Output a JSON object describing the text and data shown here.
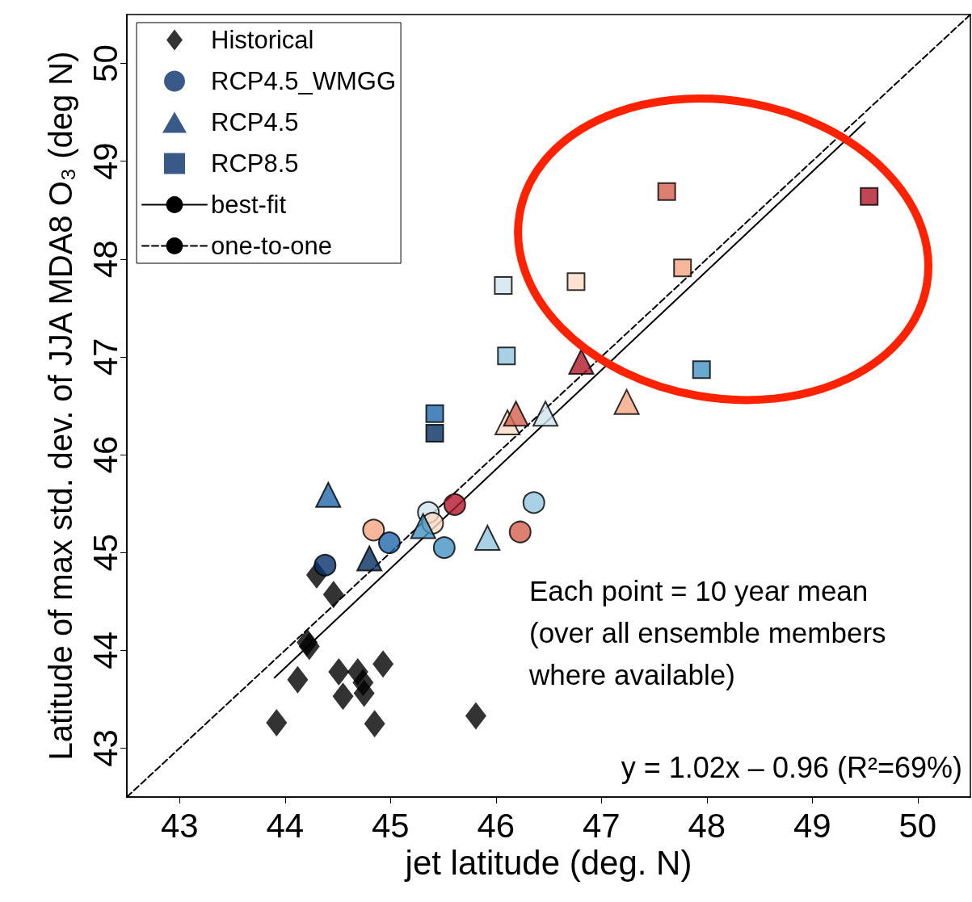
{
  "chart_data": {
    "type": "scatter",
    "xlabel": "jet latitude (deg. N)",
    "ylabel": "Latitude of max std. dev. of JJA MDA8 O₃ (deg N)",
    "xlim": [
      42.5,
      50.5
    ],
    "xticks": [
      43,
      44,
      45,
      46,
      47,
      48,
      49,
      50
    ],
    "ylim": [
      42.5,
      50.5
    ],
    "yticks": [
      43,
      44,
      45,
      46,
      47,
      48,
      49,
      50
    ],
    "grid": false,
    "legend": "top left",
    "series": [
      {
        "name": "Historical",
        "marker": "diamond",
        "color": "#000000",
        "x": [
          43.92,
          44.12,
          44.21,
          44.23,
          44.3,
          44.46,
          44.51,
          44.55,
          44.69,
          44.74,
          44.75,
          44.93,
          44.85,
          45.81
        ],
        "values": [
          43.26,
          43.7,
          44.08,
          44.04,
          44.77,
          44.57,
          43.78,
          43.53,
          43.78,
          43.67,
          43.56,
          43.86,
          43.25,
          43.33
        ]
      },
      {
        "name": "RCP4.5_WMGG",
        "marker": "circle",
        "color": "#08306b",
        "x": [
          44.38,
          44.84,
          44.99,
          45.36,
          45.4,
          45.61,
          45.51,
          46.23,
          46.36
        ],
        "values": [
          44.87,
          45.23,
          45.1,
          45.41,
          45.3,
          45.49,
          45.05,
          45.21,
          45.51
        ],
        "colors": [
          "#08306b",
          "#f4a582",
          "#2166ac",
          "#d1e5f0",
          "#fddbc7",
          "#b2182b",
          "#4393c3",
          "#d6604d",
          "#92c5de"
        ]
      },
      {
        "name": "RCP4.5",
        "marker": "triangle",
        "color": "#08306b",
        "x": [
          44.41,
          44.8,
          45.31,
          45.92,
          46.11,
          46.19,
          46.47,
          46.81,
          47.24
        ],
        "values": [
          45.59,
          44.94,
          45.27,
          45.15,
          46.33,
          46.42,
          46.42,
          46.95,
          46.54
        ],
        "colors": [
          "#2166ac",
          "#053061",
          "#4393c3",
          "#92c5de",
          "#fddbc7",
          "#d6604d",
          "#d1e5f0",
          "#b2182b",
          "#f4a582"
        ]
      },
      {
        "name": "RCP8.5",
        "marker": "square",
        "color": "#08306b",
        "x": [
          45.42,
          45.42,
          46.07,
          46.1,
          46.76,
          47.62,
          47.77,
          49.54,
          47.95
        ],
        "values": [
          46.42,
          46.22,
          47.73,
          47.01,
          47.77,
          48.69,
          47.91,
          48.64,
          46.87
        ],
        "colors": [
          "#2166ac",
          "#053061",
          "#d1e5f0",
          "#92c5de",
          "#fddbc7",
          "#d6604d",
          "#f4a582",
          "#b2182b",
          "#4393c3"
        ]
      },
      {
        "name": "best-fit",
        "type": "line",
        "marker": "none",
        "line_style": "solid",
        "color": "#000000",
        "x": [
          43.9,
          49.5
        ],
        "values": [
          43.72,
          49.4
        ]
      },
      {
        "name": "one-to-one",
        "type": "line",
        "marker": "none",
        "line_style": "dashed",
        "color": "#000000",
        "x": [
          42.5,
          50.5
        ],
        "values": [
          42.5,
          50.5
        ]
      }
    ],
    "annotations": [
      "Each point = 10 year mean\n(over all ensemble members\nwhere available)",
      "y = 1.02x – 0.96 (R²=69%)"
    ]
  }
}
